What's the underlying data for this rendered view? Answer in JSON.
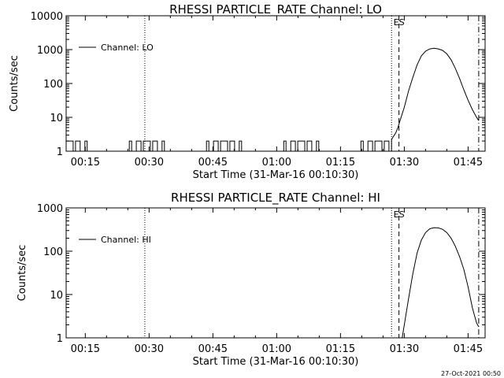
{
  "footer_text": "27-Oct-2021 00:50",
  "chart_data": [
    {
      "type": "line",
      "title": "RHESSI PARTICLE_RATE Channel: LO",
      "xlabel": "Start Time (31-Mar-16 00:10:30)",
      "ylabel": "Counts/sec",
      "y_scale": "log",
      "grid": false,
      "legend_position": "top-left",
      "xlim": [
        "00:10:30",
        "01:49:00"
      ],
      "ylim": [
        1,
        10000
      ],
      "x_ticks": [
        "00:15",
        "00:30",
        "00:45",
        "01:00",
        "01:15",
        "01:30",
        "01:45"
      ],
      "y_ticks": [
        {
          "value": 1,
          "label": "1"
        },
        {
          "value": 10,
          "label": "10"
        },
        {
          "value": 100,
          "label": "100"
        },
        {
          "value": 1000,
          "label": "1000"
        },
        {
          "value": 10000,
          "label": "10000"
        }
      ],
      "markers": [
        {
          "time": "00:29:00",
          "style": "dotted",
          "label": ""
        },
        {
          "time": "01:27:00",
          "style": "dotted",
          "label": ""
        },
        {
          "time": "01:28:45",
          "style": "dashed",
          "label": "ES"
        },
        {
          "time": "01:47:30",
          "style": "dashdot",
          "label": ""
        }
      ],
      "series": [
        {
          "name": "Channel: LO",
          "baseline_toggle": {
            "from": "00:10:30",
            "to": "01:27:00",
            "low": 1,
            "high": 2
          },
          "x": [
            "01:27:00",
            "01:27:30",
            "01:28:00",
            "01:28:30",
            "01:29:00",
            "01:30:00",
            "01:31:00",
            "01:32:00",
            "01:33:00",
            "01:34:00",
            "01:35:00",
            "01:36:00",
            "01:37:00",
            "01:38:00",
            "01:39:00",
            "01:40:00",
            "01:41:00",
            "01:42:00",
            "01:43:00",
            "01:44:00",
            "01:45:00",
            "01:46:00",
            "01:47:00",
            "01:47:30"
          ],
          "values": [
            2.2,
            2.8,
            3.5,
            5,
            8,
            20,
            60,
            150,
            350,
            650,
            900,
            1050,
            1100,
            1050,
            950,
            750,
            500,
            280,
            140,
            65,
            32,
            17,
            10,
            8
          ]
        }
      ]
    },
    {
      "type": "line",
      "title": "RHESSI PARTICLE_RATE Channel: HI",
      "xlabel": "Start Time (31-Mar-16 00:10:30)",
      "ylabel": "Counts/sec",
      "y_scale": "log",
      "grid": false,
      "legend_position": "top-left",
      "xlim": [
        "00:10:30",
        "01:49:00"
      ],
      "ylim": [
        1,
        1000
      ],
      "x_ticks": [
        "00:15",
        "00:30",
        "00:45",
        "01:00",
        "01:15",
        "01:30",
        "01:45"
      ],
      "y_ticks": [
        {
          "value": 1,
          "label": "1"
        },
        {
          "value": 10,
          "label": "10"
        },
        {
          "value": 100,
          "label": "100"
        },
        {
          "value": 1000,
          "label": "1000"
        }
      ],
      "markers": [
        {
          "time": "00:29:00",
          "style": "dotted",
          "label": ""
        },
        {
          "time": "01:27:00",
          "style": "dotted",
          "label": ""
        },
        {
          "time": "01:28:45",
          "style": "dashed",
          "label": "ES"
        },
        {
          "time": "01:47:30",
          "style": "dashdot",
          "label": ""
        }
      ],
      "series": [
        {
          "name": "Channel: HI",
          "x": [
            "01:29:30",
            "01:30:00",
            "01:31:00",
            "01:32:00",
            "01:33:00",
            "01:34:00",
            "01:35:00",
            "01:36:00",
            "01:37:00",
            "01:38:00",
            "01:39:00",
            "01:40:00",
            "01:41:00",
            "01:42:00",
            "01:43:00",
            "01:44:00",
            "01:45:00",
            "01:46:00",
            "01:47:00",
            "01:47:30"
          ],
          "values": [
            1,
            2,
            8,
            30,
            90,
            180,
            270,
            330,
            350,
            345,
            320,
            270,
            200,
            130,
            75,
            38,
            15,
            5,
            2.2,
            1.8
          ]
        }
      ]
    }
  ]
}
